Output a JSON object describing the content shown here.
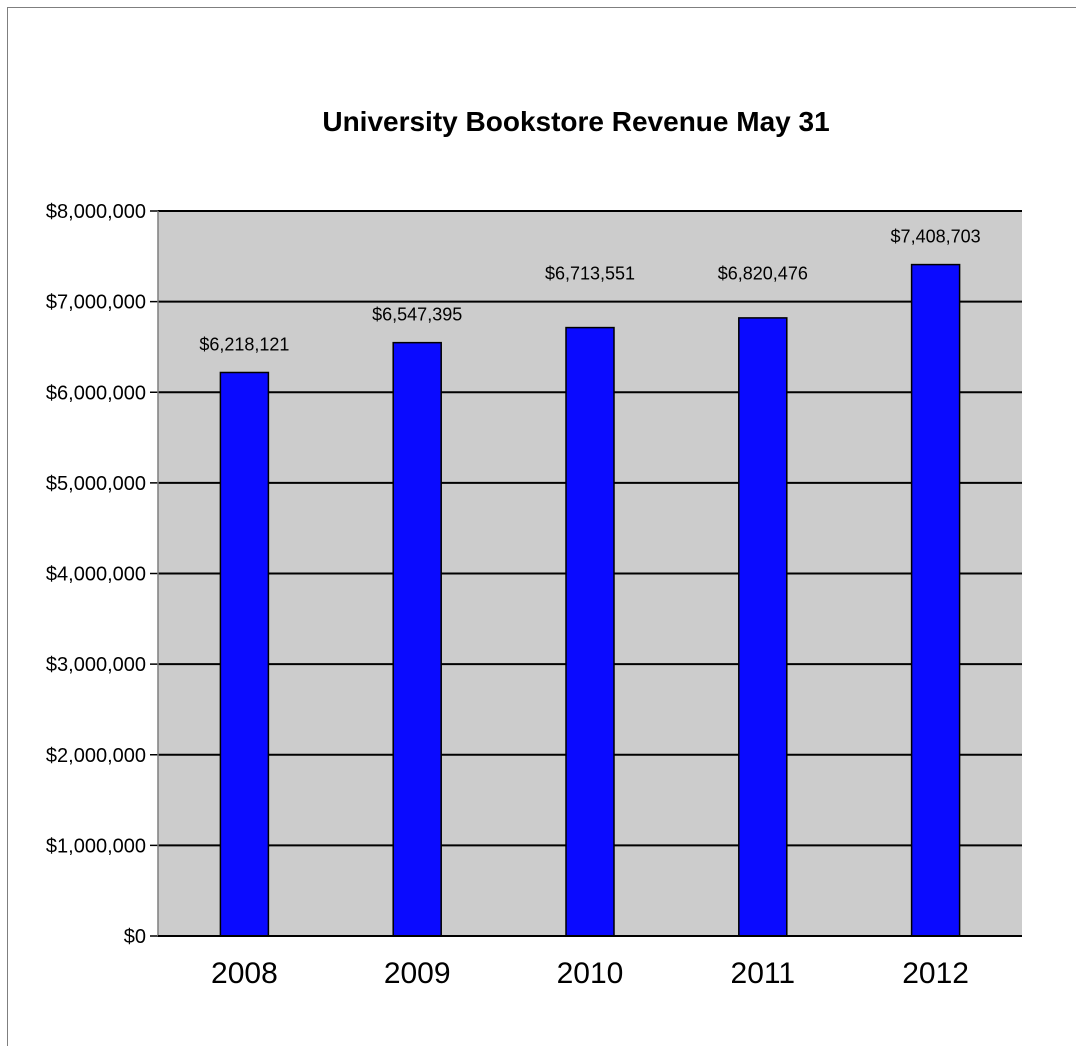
{
  "chart_data": {
    "type": "bar",
    "title": "University Bookstore Revenue May 31",
    "xlabel": "",
    "ylabel": "",
    "categories": [
      "2008",
      "2009",
      "2010",
      "2011",
      "2012"
    ],
    "values": [
      6218121,
      6547395,
      6713551,
      6820476,
      7408703
    ],
    "data_labels": [
      "$6,218,121",
      "$6,547,395",
      "$6,713,551",
      "$6,820,476",
      "$7,408,703"
    ],
    "ylim": [
      0,
      8000000
    ],
    "yticks": [
      0,
      1000000,
      2000000,
      3000000,
      4000000,
      5000000,
      6000000,
      7000000,
      8000000
    ],
    "ytick_labels": [
      "$0",
      "$1,000,000",
      "$2,000,000",
      "$3,000,000",
      "$4,000,000",
      "$5,000,000",
      "$6,000,000",
      "$7,000,000",
      "$8,000,000"
    ],
    "grid": true,
    "legend": "none",
    "bar_color": "#0a0aff",
    "plot_background": "#cccccc"
  }
}
